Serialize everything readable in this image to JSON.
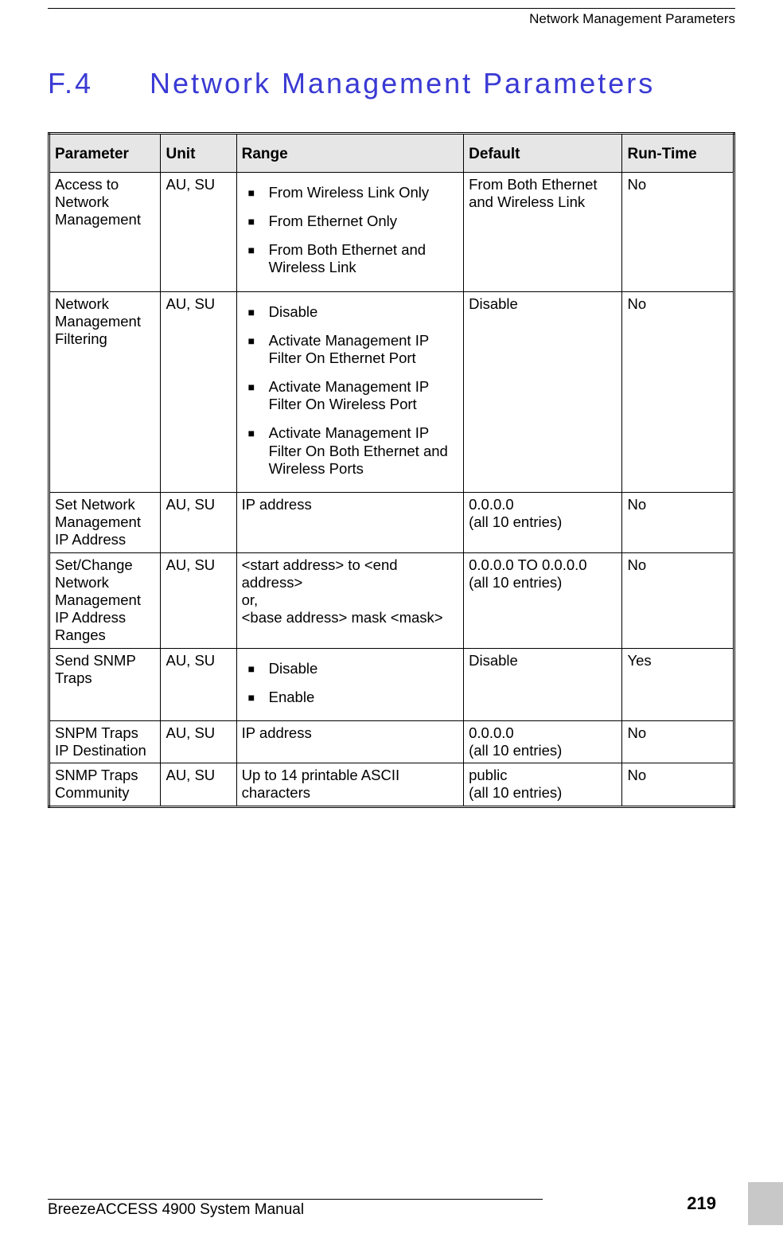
{
  "header": {
    "running_title": "Network Management Parameters"
  },
  "section": {
    "number": "F.4",
    "title": "Network Management Parameters"
  },
  "table": {
    "columns": [
      "Parameter",
      "Unit",
      "Range",
      "Default",
      "Run-Time"
    ],
    "rows": [
      {
        "parameter": "Access to Network Management",
        "unit": "AU, SU",
        "range_bullets": [
          "From Wireless Link Only",
          "From Ethernet Only",
          "From Both Ethernet and Wireless Link"
        ],
        "default": "From Both Ethernet and Wireless Link",
        "runtime": "No"
      },
      {
        "parameter": "Network Management Filtering",
        "unit": "AU, SU",
        "range_bullets": [
          "Disable",
          "Activate Management IP Filter On Ethernet Port",
          "Activate Management IP Filter On Wireless Port",
          "Activate Management IP Filter On Both Ethernet and Wireless Ports"
        ],
        "default": "Disable",
        "runtime": "No"
      },
      {
        "parameter": "Set Network Management IP Address",
        "unit": "AU, SU",
        "range_text": "IP address",
        "default": "0.0.0.0\n(all 10 entries)",
        "runtime": "No"
      },
      {
        "parameter": "Set/Change Network Management IP Address Ranges",
        "unit": "AU, SU",
        "range_text": "<start address> to <end address>\nor,\n<base address> mask <mask>",
        "default": "0.0.0.0 TO 0.0.0.0\n(all 10 entries)",
        "runtime": "No"
      },
      {
        "parameter": "Send SNMP Traps",
        "unit": "AU, SU",
        "range_bullets": [
          "Disable",
          "Enable"
        ],
        "default": "Disable",
        "runtime": "Yes"
      },
      {
        "parameter": "SNPM Traps IP Destination",
        "unit": "AU, SU",
        "range_text": "IP address",
        "default": "0.0.0.0\n(all 10 entries)",
        "runtime": "No"
      },
      {
        "parameter": "SNMP Traps Community",
        "unit": "AU, SU",
        "range_text": "Up to 14 printable ASCII characters",
        "default": "public\n(all 10 entries)",
        "runtime": "No"
      }
    ]
  },
  "footer": {
    "manual_title": "BreezeACCESS 4900 System Manual",
    "page_number": "219"
  },
  "colors": {
    "title_color": "#3a3ad4",
    "header_bg": "#e6e6e6",
    "text": "#000000",
    "background": "#ffffff",
    "strip_gray": "#c8c8c8"
  }
}
